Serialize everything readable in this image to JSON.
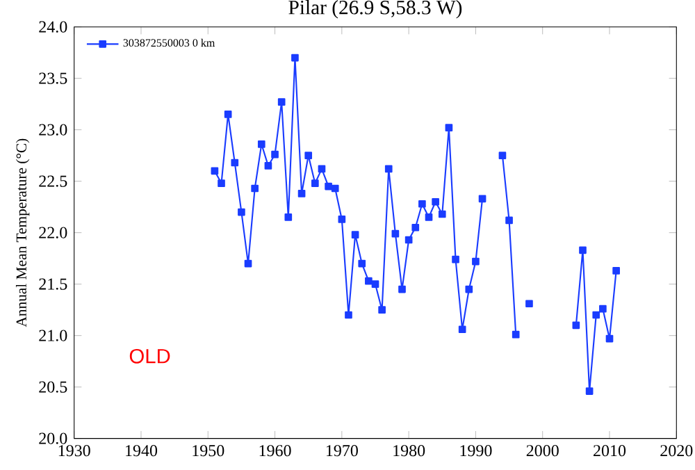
{
  "chart_data": {
    "type": "line",
    "title": "Pilar (26.9 S,58.3 W)",
    "ylabel": "Annual Mean Temperature (°C)",
    "x": [
      1951,
      1952,
      1953,
      1954,
      1955,
      1956,
      1957,
      1958,
      1959,
      1960,
      1961,
      1962,
      1963,
      1964,
      1965,
      1966,
      1967,
      1968,
      1969,
      1970,
      1971,
      1972,
      1973,
      1974,
      1975,
      1976,
      1977,
      1978,
      1979,
      1980,
      1981,
      1982,
      1983,
      1984,
      1985,
      1986,
      1987,
      1988,
      1989,
      1990,
      1991,
      1992,
      1993,
      1994,
      1995,
      1996,
      1997,
      1998,
      1999,
      2005,
      2006,
      2007,
      2008,
      2009,
      2010,
      2011
    ],
    "series": [
      {
        "name": "303872550003 0 km",
        "color": "#1a3cff",
        "values": [
          22.6,
          22.48,
          23.15,
          22.68,
          22.2,
          21.7,
          22.43,
          22.86,
          22.65,
          22.76,
          23.27,
          22.15,
          23.7,
          22.38,
          22.75,
          22.48,
          22.62,
          22.45,
          22.43,
          22.13,
          21.2,
          21.98,
          21.7,
          21.53,
          21.5,
          21.25,
          22.62,
          21.99,
          21.45,
          21.93,
          22.05,
          22.28,
          22.15,
          22.3,
          22.18,
          23.02,
          21.74,
          21.06,
          21.45,
          21.72,
          22.33,
          null,
          null,
          22.75,
          22.12,
          21.01,
          null,
          21.31,
          null,
          21.1,
          21.83,
          20.46,
          21.2,
          21.26,
          20.97,
          21.63
        ]
      }
    ],
    "xlim": [
      1930,
      2020
    ],
    "xticks": [
      1930,
      1940,
      1950,
      1960,
      1970,
      1980,
      1990,
      2000,
      2010,
      2020
    ],
    "ylim": [
      20,
      24
    ],
    "yticks": [
      {
        "value": 20,
        "label": "20.0"
      },
      {
        "value": 20.5,
        "label": "20.5"
      },
      {
        "value": 21,
        "label": "21.0"
      },
      {
        "value": 21.5,
        "label": "21.5"
      },
      {
        "value": 22,
        "label": "22.0"
      },
      {
        "value": 22.5,
        "label": "22.5"
      },
      {
        "value": 23,
        "label": "23.0"
      },
      {
        "value": 23.5,
        "label": "23.5"
      },
      {
        "value": 24,
        "label": "24.0"
      }
    ],
    "marker": "square",
    "line_style": "solid",
    "legend": "top left",
    "grid": false,
    "annotations": [
      "OLD"
    ]
  }
}
